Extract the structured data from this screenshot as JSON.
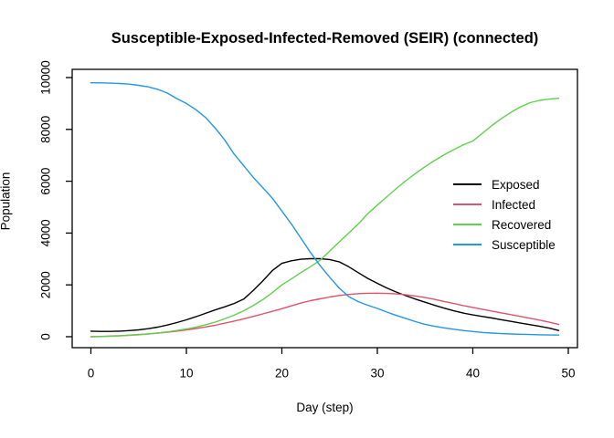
{
  "chart_data": {
    "type": "line",
    "title": "Susceptible-Exposed-Infected-Removed (SEIR) (connected)",
    "xlabel": "Day (step)",
    "ylabel": "Population",
    "x_ticks": [
      0,
      10,
      20,
      30,
      40,
      50
    ],
    "y_ticks": [
      0,
      2000,
      4000,
      6000,
      8000,
      10000
    ],
    "x_range": [
      -1.96,
      50.96
    ],
    "y_range": [
      -423,
      10317
    ],
    "grid": false,
    "legend_position": "right-center",
    "x": [
      0,
      1,
      2,
      3,
      4,
      5,
      6,
      7,
      8,
      9,
      10,
      11,
      12,
      13,
      14,
      15,
      16,
      17,
      18,
      19,
      20,
      21,
      22,
      23,
      24,
      25,
      26,
      27,
      28,
      29,
      30,
      31,
      32,
      33,
      34,
      35,
      36,
      37,
      38,
      39,
      40,
      41,
      42,
      43,
      44,
      45,
      46,
      47,
      48,
      49
    ],
    "series": [
      {
        "name": "Exposed",
        "color": "#000000",
        "values": [
          215,
          205,
          205,
          215,
          235,
          265,
          310,
          370,
          450,
          545,
          650,
          770,
          900,
          1030,
          1150,
          1280,
          1450,
          1780,
          2150,
          2550,
          2830,
          2930,
          2990,
          3010,
          3010,
          2980,
          2890,
          2700,
          2470,
          2250,
          2060,
          1880,
          1720,
          1580,
          1450,
          1330,
          1210,
          1100,
          1000,
          910,
          840,
          780,
          720,
          655,
          590,
          525,
          465,
          400,
          330,
          240
        ]
      },
      {
        "name": "Infected",
        "color": "#DF536B",
        "values": [
          0,
          10,
          25,
          40,
          60,
          85,
          110,
          140,
          175,
          215,
          260,
          315,
          375,
          440,
          520,
          600,
          690,
          780,
          880,
          980,
          1080,
          1190,
          1300,
          1390,
          1460,
          1530,
          1590,
          1630,
          1660,
          1675,
          1680,
          1670,
          1650,
          1615,
          1570,
          1510,
          1440,
          1360,
          1280,
          1200,
          1130,
          1060,
          990,
          920,
          850,
          780,
          710,
          640,
          560,
          470
        ]
      },
      {
        "name": "Recovered",
        "color": "#61D04F",
        "values": [
          0,
          5,
          15,
          30,
          50,
          75,
          105,
          140,
          185,
          240,
          300,
          370,
          460,
          560,
          690,
          830,
          1000,
          1200,
          1430,
          1700,
          2000,
          2230,
          2480,
          2700,
          2950,
          3300,
          3650,
          4000,
          4350,
          4750,
          5080,
          5400,
          5720,
          6020,
          6300,
          6560,
          6800,
          7020,
          7220,
          7400,
          7550,
          7850,
          8150,
          8420,
          8660,
          8870,
          9030,
          9120,
          9170,
          9200
        ]
      },
      {
        "name": "Susceptible",
        "color": "#2297E6",
        "values": [
          9800,
          9795,
          9785,
          9770,
          9745,
          9700,
          9640,
          9545,
          9400,
          9190,
          9000,
          8760,
          8460,
          8060,
          7600,
          7050,
          6600,
          6150,
          5750,
          5350,
          4850,
          4350,
          3800,
          3250,
          2750,
          2300,
          1880,
          1550,
          1350,
          1215,
          1090,
          950,
          820,
          700,
          580,
          480,
          400,
          340,
          290,
          240,
          200,
          165,
          140,
          120,
          105,
          95,
          85,
          75,
          68,
          62
        ]
      }
    ]
  }
}
